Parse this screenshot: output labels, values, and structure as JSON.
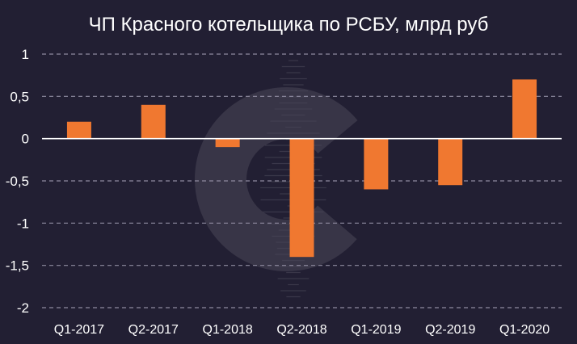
{
  "chart_data": {
    "type": "bar",
    "title": "ЧП Красного котельщика по РСБУ, млрд руб",
    "xlabel": "",
    "ylabel": "",
    "categories": [
      "Q1-2017",
      "Q2-2017",
      "Q1-2018",
      "Q2-2018",
      "Q1-2019",
      "Q2-2019",
      "Q1-2020"
    ],
    "values": [
      0.2,
      0.4,
      -0.1,
      -1.4,
      -0.6,
      -0.55,
      0.7
    ],
    "ylim": [
      -2,
      1
    ],
    "yticks": [
      {
        "value": 1,
        "label": "1"
      },
      {
        "value": 0.5,
        "label": "0,5"
      },
      {
        "value": 0,
        "label": "0"
      },
      {
        "value": -0.5,
        "label": "-0,5"
      },
      {
        "value": -1,
        "label": "-1"
      },
      {
        "value": -1.5,
        "label": "-1,5"
      },
      {
        "value": -2,
        "label": "-2"
      }
    ],
    "grid": true,
    "grid_style": "dashed",
    "legend": "none",
    "colors": {
      "background": "#221f33",
      "bar": "#f07830",
      "grid": "#8e8ba0",
      "zero_line": "#ffffff",
      "text": "#ffffff",
      "watermark": "#4a4758"
    }
  }
}
